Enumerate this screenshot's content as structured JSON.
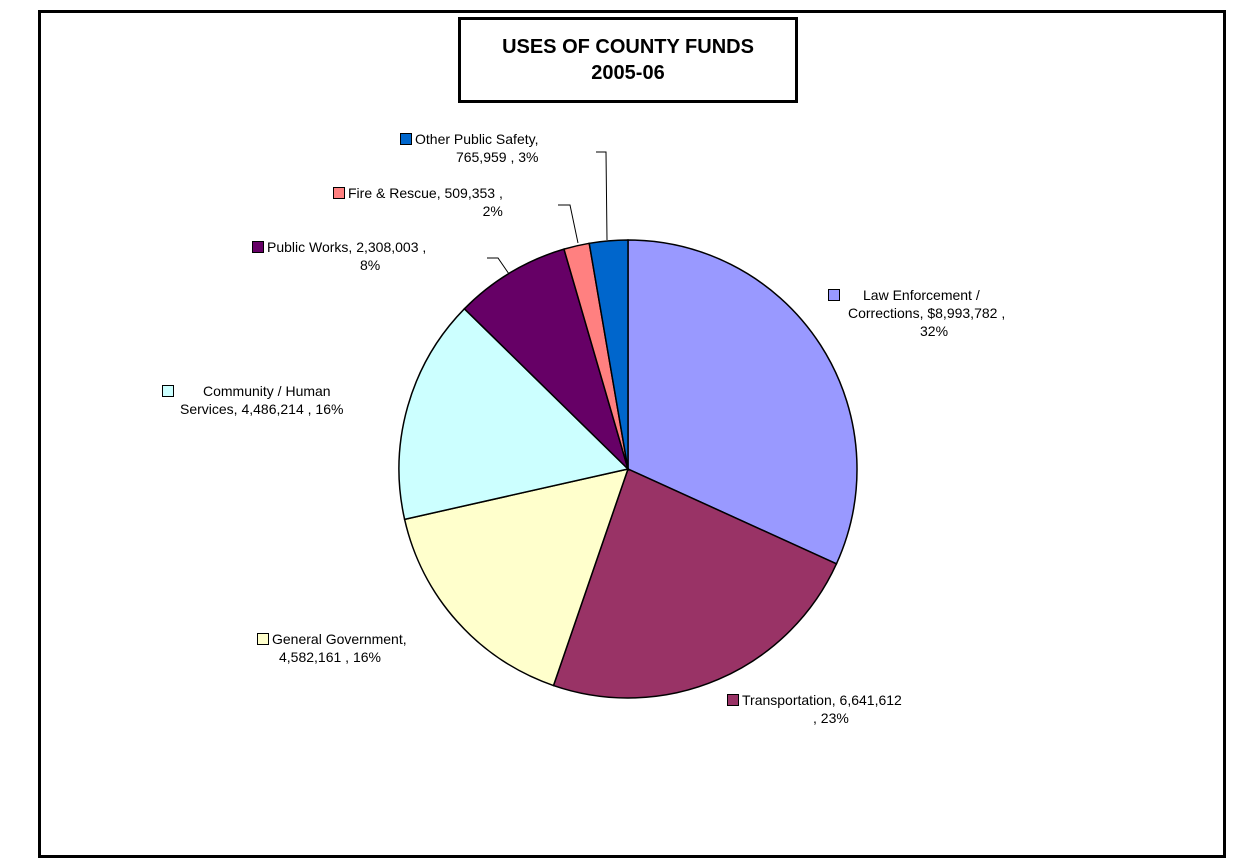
{
  "title": {
    "line1": "USES OF COUNTY FUNDS",
    "line2": "2005-06"
  },
  "chart_data": {
    "type": "pie",
    "title": "USES OF COUNTY FUNDS 2005-06",
    "slices": [
      {
        "category": "Law Enforcement / Corrections",
        "value": 8993782,
        "value_label": "$8,993,782",
        "percent": "32%",
        "color": "#9999ff"
      },
      {
        "category": "Transportation",
        "value": 6641612,
        "value_label": "6,641,612",
        "percent": "23%",
        "color": "#993366"
      },
      {
        "category": "General Government",
        "value": 4582161,
        "value_label": "4,582,161",
        "percent": "16%",
        "color": "#ffffcc"
      },
      {
        "category": "Community / Human Services",
        "value": 4486214,
        "value_label": "4,486,214",
        "percent": "16%",
        "color": "#ccffff"
      },
      {
        "category": "Public Works",
        "value": 2308003,
        "value_label": "2,308,003",
        "percent": "8%",
        "color": "#660066"
      },
      {
        "category": "Fire & Rescue",
        "value": 509353,
        "value_label": "509,353",
        "percent": "2%",
        "color": "#ff8080"
      },
      {
        "category": "Other Public Safety",
        "value": 765959,
        "value_label": "765,959",
        "percent": "3%",
        "color": "#0066cc"
      }
    ]
  },
  "labels": {
    "law": {
      "line1": "Law Enforcement /",
      "line2": "Corrections,  $8,993,782 ,",
      "line3": "32%"
    },
    "transportation": {
      "line1": "Transportation,  6,641,612",
      "line2": ", 23%"
    },
    "general": {
      "line1": "General Government,",
      "line2": "4,582,161 , 16%"
    },
    "community": {
      "line1": "Community / Human",
      "line2": "Services,  4,486,214 , 16%"
    },
    "public_works": {
      "line1": "Public Works,  2,308,003 ,",
      "line2": "8%"
    },
    "fire": {
      "line1": "Fire & Rescue,  509,353 ,",
      "line2": "2%"
    },
    "other": {
      "line1": "Other  Public  Safety,",
      "line2": "765,959 , 3%"
    }
  }
}
